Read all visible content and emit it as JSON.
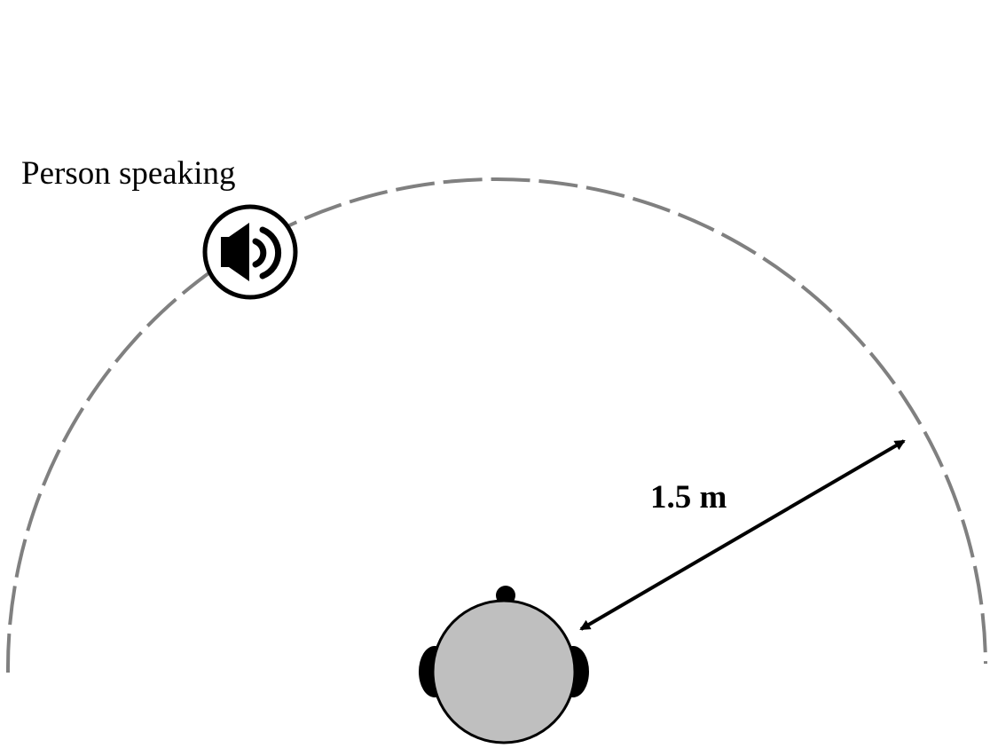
{
  "speaker": {
    "label": "Person speaking"
  },
  "distance": {
    "label": "1.5 m"
  },
  "colors": {
    "arc": "#808080",
    "head_fill": "#bfbfbf",
    "stroke": "#000000",
    "background": "#ffffff"
  },
  "icons": {
    "speaker": "speaker-icon",
    "head": "listener-head-icon"
  }
}
